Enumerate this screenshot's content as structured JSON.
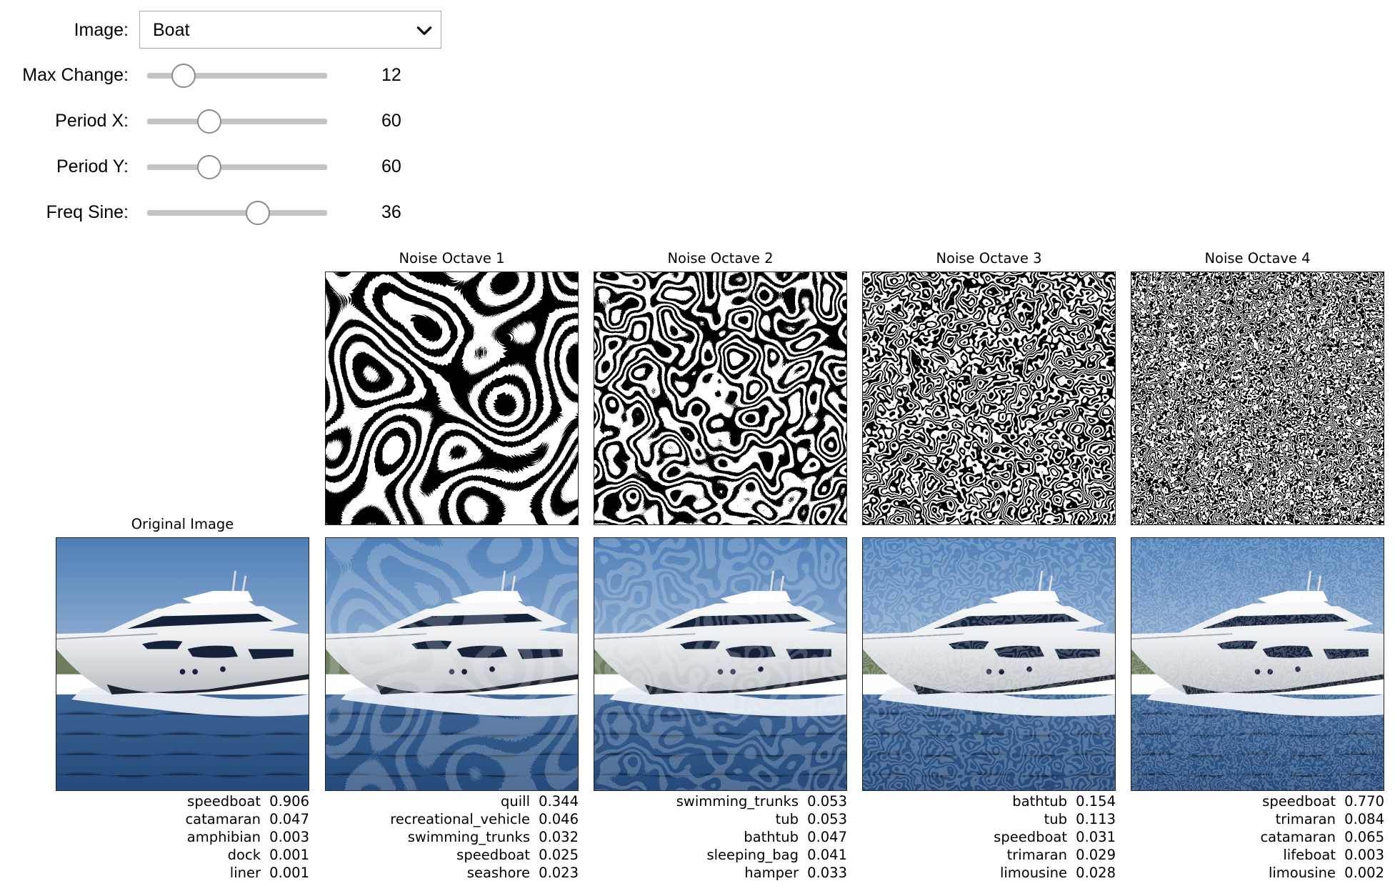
{
  "controls": {
    "image": {
      "label": "Image:",
      "value": "Boat"
    },
    "max_change": {
      "label": "Max Change:",
      "value": "12",
      "fraction": 0.2
    },
    "period_x": {
      "label": "Period X:",
      "value": "60",
      "fraction": 0.34
    },
    "period_y": {
      "label": "Period Y:",
      "value": "60",
      "fraction": 0.34
    },
    "freq_sine": {
      "label": "Freq Sine:",
      "value": "36",
      "fraction": 0.61
    }
  },
  "icons": {
    "dropdown": "chevron-down-icon",
    "images": "photo-of-white-yacht-on-blue-water",
    "noise": "black-white-perlin-sine-noise-pattern"
  },
  "colors": {
    "sky": "#5d86b8",
    "water": "#2f5a8c",
    "hull": "#e6e8ea",
    "slider_track": "#c4c4c4"
  },
  "noise_titles": [
    "Noise Octave 1",
    "Noise Octave 2",
    "Noise Octave 3",
    "Noise Octave 4"
  ],
  "original_title": "Original Image",
  "predictions": [
    [
      {
        "label": "speedboat",
        "score": "0.906"
      },
      {
        "label": "catamaran",
        "score": "0.047"
      },
      {
        "label": "amphibian",
        "score": "0.003"
      },
      {
        "label": "dock",
        "score": "0.001"
      },
      {
        "label": "liner",
        "score": "0.001"
      }
    ],
    [
      {
        "label": "quill",
        "score": "0.344"
      },
      {
        "label": "recreational_vehicle",
        "score": "0.046"
      },
      {
        "label": "swimming_trunks",
        "score": "0.032"
      },
      {
        "label": "speedboat",
        "score": "0.025"
      },
      {
        "label": "seashore",
        "score": "0.023"
      }
    ],
    [
      {
        "label": "swimming_trunks",
        "score": "0.053"
      },
      {
        "label": "tub",
        "score": "0.053"
      },
      {
        "label": "bathtub",
        "score": "0.047"
      },
      {
        "label": "sleeping_bag",
        "score": "0.041"
      },
      {
        "label": "hamper",
        "score": "0.033"
      }
    ],
    [
      {
        "label": "bathtub",
        "score": "0.154"
      },
      {
        "label": "tub",
        "score": "0.113"
      },
      {
        "label": "speedboat",
        "score": "0.031"
      },
      {
        "label": "trimaran",
        "score": "0.029"
      },
      {
        "label": "limousine",
        "score": "0.028"
      }
    ],
    [
      {
        "label": "speedboat",
        "score": "0.770"
      },
      {
        "label": "trimaran",
        "score": "0.084"
      },
      {
        "label": "catamaran",
        "score": "0.065"
      },
      {
        "label": "lifeboat",
        "score": "0.003"
      },
      {
        "label": "limousine",
        "score": "0.002"
      }
    ]
  ]
}
